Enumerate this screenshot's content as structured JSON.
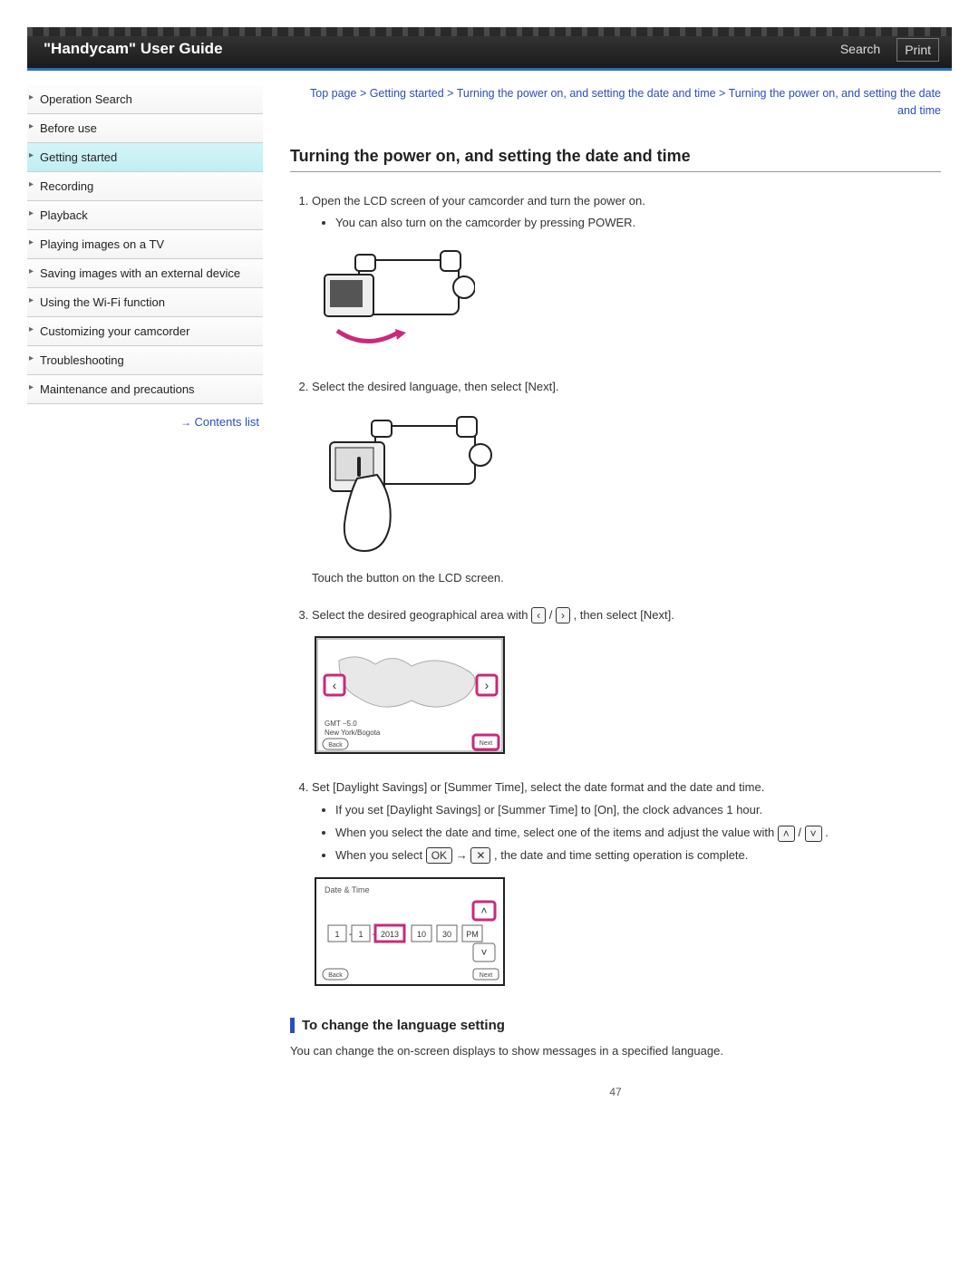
{
  "header": {
    "title": "\"Handycam\" User Guide",
    "search_label": "Search",
    "print_label": "Print"
  },
  "sidebar": {
    "items": [
      {
        "label": "Operation Search",
        "active": false
      },
      {
        "label": "Before use",
        "active": false
      },
      {
        "label": "Getting started",
        "active": true
      },
      {
        "label": "Recording",
        "active": false
      },
      {
        "label": "Playback",
        "active": false
      },
      {
        "label": "Playing images on a TV",
        "active": false
      },
      {
        "label": "Saving images with an external device",
        "active": false
      },
      {
        "label": "Using the Wi-Fi function",
        "active": false
      },
      {
        "label": "Customizing your camcorder",
        "active": false
      },
      {
        "label": "Troubleshooting",
        "active": false
      },
      {
        "label": "Maintenance and precautions",
        "active": false
      }
    ],
    "contents_list": "Contents list"
  },
  "breadcrumb": "Top page > Getting started > Turning the power on, and setting the date and time > Turning the power on, and setting the date and time",
  "page_title": "Turning the power on, and setting the date and time",
  "steps": {
    "s1": {
      "text": "Open the LCD screen of your camcorder and turn the power on.",
      "bullet1": "You can also turn on the camcorder by pressing POWER."
    },
    "s2": {
      "text": "Select the desired language, then select [Next].",
      "caption": "Touch the button on the LCD screen."
    },
    "s3": {
      "pre": "Select the desired geographical area with ",
      "post": ", then select [Next].",
      "left_icon": "‹",
      "right_icon": "›",
      "map_label_gmt": "GMT  −5.0",
      "map_label_city": "New York/Bogota",
      "map_back": "Back",
      "map_next": "Next"
    },
    "s4": {
      "text": "Set [Daylight Savings] or [Summer Time], select the date format and the date and time.",
      "b1": "If you set [Daylight Savings] or [Summer Time] to [On], the clock advances 1 hour.",
      "b2_pre": "When you select the date and time, select one of the items and adjust the value with ",
      "b2_post": ".",
      "b3_pre": "When you select ",
      "b3_mid": " → ",
      "b3_post": ", the date and time setting operation is complete.",
      "up_icon": "˄",
      "down_icon": "˅",
      "ok_icon": "OK",
      "x_icon": "✕",
      "dt_title": "Date & Time",
      "dt_values": [
        "1",
        "1",
        "2013",
        "10",
        "30",
        "PM"
      ],
      "dt_back": "Back",
      "dt_next": "Next"
    }
  },
  "subhead": "To change the language setting",
  "sub_body": "You can change the on-screen displays to show messages in a specified language.",
  "page_number": "47",
  "colors": {
    "accent": "#2a6fb8",
    "link": "#2a4fb8",
    "highlight": "#c92a7a",
    "nav_active_bg": "#c1eef3"
  }
}
